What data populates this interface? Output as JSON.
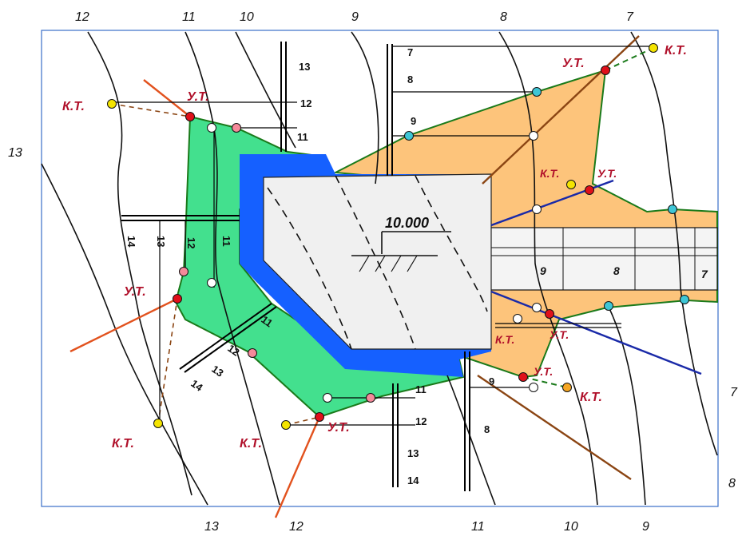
{
  "contour_labels": {
    "top": [
      "12",
      "11",
      "10",
      "9",
      "8",
      "7"
    ],
    "bottom": [
      "13",
      "12",
      "11",
      "10",
      "9"
    ],
    "left": "13",
    "right_a": "7",
    "right_b": "8"
  },
  "point_labels": {
    "kt": "К.Т.",
    "ut": "У.Т."
  },
  "elevation": "10.000",
  "ruler_ticks": {
    "top_left": [
      "13",
      "12",
      "11"
    ],
    "top_mid": [
      "7",
      "8",
      "9"
    ],
    "left_vertical": [
      "14",
      "13",
      "12",
      "11"
    ],
    "lower_left": [
      "11",
      "12",
      "13",
      "14"
    ],
    "bottom_center": [
      "11",
      "12",
      "13",
      "14"
    ],
    "right_lower": [
      "9",
      "8"
    ],
    "road": [
      "9",
      "8",
      "7"
    ]
  },
  "colors": {
    "fill_left": "#43e08e",
    "fill_right": "#fdc47b",
    "platform": "#f0f0f0",
    "berm": "#1560ff",
    "red_point": "#e0101a",
    "yellow_point": "#f4e400",
    "cyan_point": "#3ec6d6",
    "pink_point": "#f58a9a",
    "orange_point": "#f5a623"
  }
}
